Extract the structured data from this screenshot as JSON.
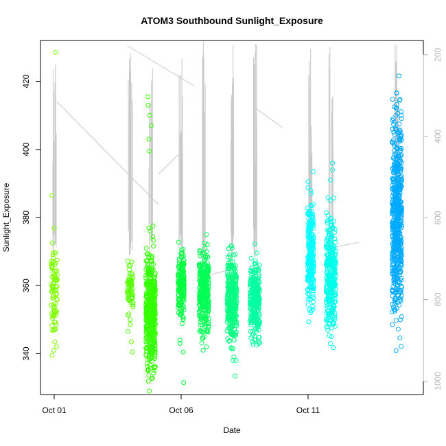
{
  "chart_data": {
    "type": "scatter",
    "title": "ATOM3 Southbound Sunlight_Exposure",
    "xlabel": "Date",
    "ylabel": "Sunlight_Exposure",
    "x_ticks": [
      "Oct 01",
      "Oct 06",
      "Oct 11"
    ],
    "y_ticks": [
      340,
      360,
      380,
      400,
      420
    ],
    "y2_ticks": [
      200,
      400,
      600,
      800,
      1000
    ],
    "xlim": [
      "2023-10-01",
      "2023-10-15"
    ],
    "ylim": [
      328,
      432
    ],
    "y2lim": [
      1033,
      165
    ],
    "grid": false,
    "colors": {
      "depth_line": "#c8c8c8",
      "right_axis": "#b4b4b4",
      "axis": "#000000"
    },
    "series": [
      {
        "date": "2023-10-01",
        "color": "#80ff00",
        "mean": 359,
        "spread": 7,
        "count": 90,
        "outliers": [
          428.5,
          386.5,
          369,
          347,
          343.5,
          341,
          339.5
        ]
      },
      {
        "date": "2023-10-04",
        "color": "#55ff00",
        "mean": 359,
        "spread": 3,
        "count": 60,
        "outliers": [
          363.5,
          350,
          346.5,
          343.5,
          340.5
        ]
      },
      {
        "date": "2023-10-04.8",
        "color": "#33ff00",
        "mean": 353,
        "spread": 8,
        "count": 420,
        "outliers": [
          415.5,
          413,
          410,
          407,
          403,
          399.5,
          377.5,
          376,
          368.5,
          365,
          335.5,
          338.5
        ]
      },
      {
        "date": "2023-10-06",
        "color": "#00ff40",
        "mean": 360,
        "spread": 5,
        "count": 170,
        "outliers": [
          368.5,
          366,
          353.5,
          344,
          343,
          340.5,
          331.5
        ]
      },
      {
        "date": "2023-10-06.9",
        "color": "#00ff55",
        "mean": 358,
        "spread": 6,
        "count": 300,
        "outliers": [
          375,
          372.5,
          370,
          348,
          345,
          342
        ]
      },
      {
        "date": "2023-10-08",
        "color": "#00ff80",
        "mean": 356,
        "spread": 6,
        "count": 300,
        "outliers": [
          369,
          367,
          365,
          344,
          341.5,
          338
        ]
      },
      {
        "date": "2023-10-08.9",
        "color": "#00ffa0",
        "mean": 356,
        "spread": 5,
        "count": 280,
        "outliers": [
          366.5,
          364,
          346.5,
          344,
          342.5
        ]
      },
      {
        "date": "2023-10-11.1",
        "color": "#00ffff",
        "mean": 368,
        "spread": 7,
        "count": 240,
        "outliers": [
          393.5,
          390.5,
          388,
          381,
          379,
          356,
          353
        ]
      },
      {
        "date": "2023-10-11.9",
        "color": "#00ffea",
        "mean": 363,
        "spread": 8,
        "count": 300,
        "outliers": [
          396,
          394,
          391,
          379,
          376,
          345,
          343,
          350
        ]
      },
      {
        "date": "2023-10-14.5",
        "color": "#00aaff",
        "mean": 380,
        "spread": 14,
        "count": 560,
        "outliers": [
          416.5,
          412.5,
          410,
          408,
          405,
          355,
          353,
          352.5
        ]
      }
    ]
  }
}
